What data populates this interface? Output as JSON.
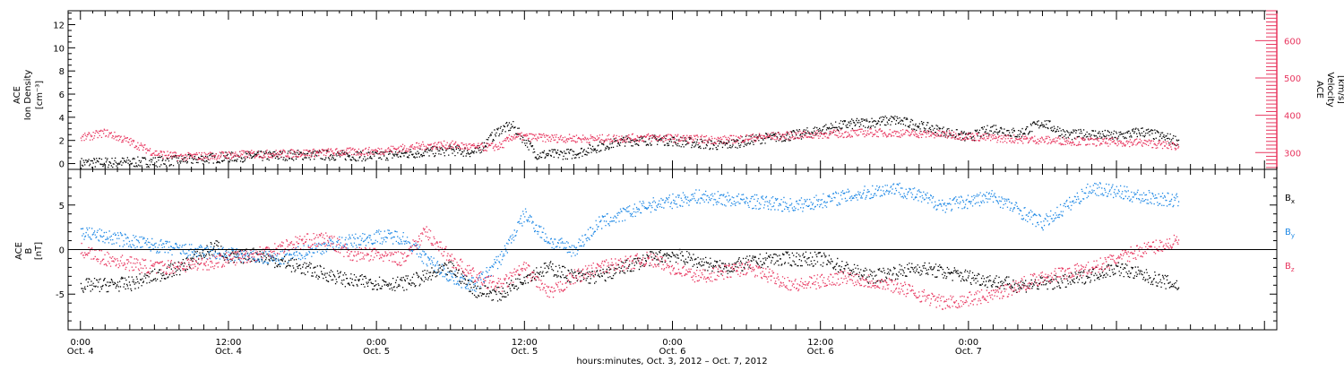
{
  "chart_data": [
    {
      "type": "scatter",
      "panel": "top",
      "left_axis": {
        "label_lines": [
          "ACE",
          "Ion Density",
          "[cm⁻³]"
        ],
        "range": [
          -0.5,
          13.2
        ],
        "ticks": [
          0,
          2,
          4,
          6,
          8,
          10,
          12
        ],
        "color": "#000000"
      },
      "right_axis": {
        "label_lines": [
          "ACE",
          "Velocity",
          "[km/s]"
        ],
        "range": [
          255,
          680
        ],
        "ticks": [
          300,
          400,
          500,
          600
        ],
        "color": "#e8365f"
      },
      "series": [
        {
          "axis": "left",
          "color": "#000000",
          "hours": [
            0,
            6,
            12,
            18,
            24,
            30,
            32,
            34,
            35,
            37,
            40,
            42,
            44,
            47,
            52,
            55,
            58,
            62,
            66,
            70,
            72,
            74,
            76,
            78,
            80,
            82,
            84,
            86,
            89
          ],
          "values": [
            0.1,
            0.2,
            0.6,
            0.8,
            0.7,
            1.2,
            1.0,
            3.0,
            3.3,
            0.8,
            0.9,
            1.5,
            2.0,
            2.1,
            1.6,
            2.2,
            2.5,
            3.4,
            3.8,
            2.8,
            2.3,
            3.1,
            2.6,
            3.6,
            2.5,
            2.6,
            2.4,
            2.8,
            2.0
          ]
        },
        {
          "axis": "right",
          "color": "#e8365f",
          "hours": [
            0,
            2,
            4,
            6,
            8,
            10,
            12,
            18,
            24,
            28,
            30,
            32,
            34,
            35,
            38,
            42,
            46,
            52,
            56,
            60,
            64,
            70,
            74,
            78,
            82,
            86,
            89
          ],
          "values": [
            340,
            355,
            330,
            300,
            290,
            292,
            295,
            300,
            305,
            320,
            322,
            315,
            318,
            345,
            340,
            338,
            342,
            335,
            345,
            350,
            355,
            350,
            340,
            335,
            330,
            328,
            318
          ]
        }
      ]
    },
    {
      "type": "scatter",
      "panel": "bottom",
      "left_axis": {
        "label_lines": [
          "ACE",
          "B",
          "[nT]"
        ],
        "range": [
          -9,
          9
        ],
        "ticks": [
          -5,
          0,
          5
        ]
      },
      "zero_line": true,
      "legend": {
        "placement": "right",
        "entries": [
          {
            "base": "B",
            "sub": "x",
            "color": "#000000"
          },
          {
            "base": "B",
            "sub": "y",
            "color": "#1e88e5"
          },
          {
            "base": "B",
            "sub": "z",
            "color": "#e8365f"
          }
        ]
      },
      "series": [
        {
          "name": "Bx",
          "color": "#000000",
          "hours": [
            0,
            4,
            8,
            11,
            12,
            14,
            18,
            22,
            26,
            28,
            30,
            32,
            34,
            36,
            38,
            40,
            42,
            44,
            46,
            48,
            52,
            56,
            60,
            64,
            68,
            72,
            76,
            80,
            84,
            89
          ],
          "values": [
            -4,
            -3.8,
            -2,
            0.5,
            -1,
            -0.5,
            -2,
            -3.5,
            -3.8,
            -3,
            -2,
            -4.5,
            -5,
            -3,
            -2,
            -3,
            -3,
            -2,
            -1,
            -0.5,
            -2,
            -1,
            -1,
            -3,
            -2,
            -3,
            -4,
            -3.5,
            -2,
            -4
          ]
        },
        {
          "name": "By",
          "color": "#1e88e5",
          "hours": [
            0,
            4,
            8,
            12,
            16,
            20,
            24,
            26,
            28,
            30,
            32,
            34,
            36,
            38,
            40,
            42,
            46,
            50,
            54,
            58,
            62,
            66,
            70,
            74,
            78,
            82,
            86,
            89
          ],
          "values": [
            2,
            1,
            0,
            -0.5,
            -1,
            0.5,
            1.5,
            1.5,
            -1,
            -3,
            -4,
            -1,
            4,
            1,
            0,
            3,
            5,
            6,
            5.5,
            5,
            6,
            7,
            5,
            6,
            3,
            7,
            6,
            5.5
          ]
        },
        {
          "name": "Bz",
          "color": "#e8365f",
          "hours": [
            0,
            2,
            6,
            10,
            14,
            18,
            20,
            22,
            24,
            26,
            28,
            30,
            32,
            34,
            36,
            38,
            40,
            42,
            46,
            50,
            54,
            58,
            62,
            66,
            70,
            74,
            78,
            82,
            86,
            89
          ],
          "values": [
            0,
            -1,
            -2,
            -1.5,
            -0.5,
            1,
            1.2,
            -0.5,
            -0.5,
            -1,
            2,
            -1,
            -3,
            -4,
            -2,
            -5,
            -3,
            -2,
            -1,
            -3,
            -2,
            -4,
            -3,
            -4,
            -6,
            -5,
            -3,
            -2,
            0,
            1
          ]
        }
      ]
    }
  ],
  "x_axis": {
    "range_hours": [
      -1,
      97
    ],
    "tick_labels": [
      {
        "hours": 0,
        "time": "0:00",
        "date": "Oct. 4"
      },
      {
        "hours": 12,
        "time": "12:00",
        "date": "Oct. 4"
      },
      {
        "hours": 24,
        "time": "0:00",
        "date": "Oct. 5"
      },
      {
        "hours": 36,
        "time": "12:00",
        "date": "Oct. 5"
      },
      {
        "hours": 48,
        "time": "0:00",
        "date": "Oct. 6"
      },
      {
        "hours": 60,
        "time": "12:00",
        "date": "Oct. 6"
      },
      {
        "hours": 72,
        "time": "0:00",
        "date": "Oct. 7"
      }
    ],
    "title": "hours:minutes, Oct. 3, 2012 – Oct. 7, 2012"
  }
}
